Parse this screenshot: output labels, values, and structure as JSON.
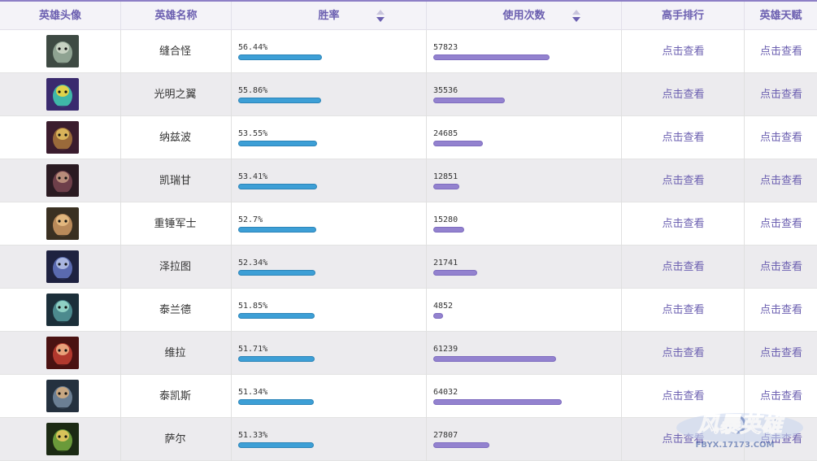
{
  "header": {
    "avatar": "英雄头像",
    "name": "英雄名称",
    "winrate": "胜率",
    "usage": "使用次数",
    "ranking": "高手排行",
    "talents": "英雄天赋"
  },
  "colors": {
    "accent": "#6b5fb0",
    "win_bar": "#3d9fd6",
    "use_bar": "#9382cf",
    "row_alt": "#ecebee"
  },
  "usage_max": 64032,
  "heroes": [
    {
      "name": "缝合怪",
      "winrate": "56.44%",
      "win_value": 56.44,
      "usage": "57823",
      "usage_value": 57823,
      "ranking": "点击查看",
      "talents": "点击查看",
      "portrait": "abomination-portrait"
    },
    {
      "name": "光明之翼",
      "winrate": "55.86%",
      "win_value": 55.86,
      "usage": "35536",
      "usage_value": 35536,
      "ranking": "点击查看",
      "talents": "点击查看",
      "portrait": "dragon-portrait"
    },
    {
      "name": "纳兹波",
      "winrate": "53.55%",
      "win_value": 53.55,
      "usage": "24685",
      "usage_value": 24685,
      "ranking": "点击查看",
      "talents": "点击查看",
      "portrait": "witchdoctor-portrait"
    },
    {
      "name": "凯瑞甘",
      "winrate": "53.41%",
      "win_value": 53.41,
      "usage": "12851",
      "usage_value": 12851,
      "ranking": "点击查看",
      "talents": "点击查看",
      "portrait": "queen-portrait"
    },
    {
      "name": "重锤军士",
      "winrate": "52.7%",
      "win_value": 52.7,
      "usage": "15280",
      "usage_value": 15280,
      "ranking": "点击查看",
      "talents": "点击查看",
      "portrait": "sergeant-portrait"
    },
    {
      "name": "泽拉图",
      "winrate": "52.34%",
      "win_value": 52.34,
      "usage": "21741",
      "usage_value": 21741,
      "ranking": "点击查看",
      "talents": "点击查看",
      "portrait": "templar-portrait"
    },
    {
      "name": "泰兰德",
      "winrate": "51.85%",
      "win_value": 51.85,
      "usage": "4852",
      "usage_value": 4852,
      "ranking": "点击查看",
      "talents": "点击查看",
      "portrait": "priestess-portrait"
    },
    {
      "name": "维拉",
      "winrate": "51.71%",
      "win_value": 51.71,
      "usage": "61239",
      "usage_value": 61239,
      "ranking": "点击查看",
      "talents": "点击查看",
      "portrait": "hunter-portrait"
    },
    {
      "name": "泰凯斯",
      "winrate": "51.34%",
      "win_value": 51.34,
      "usage": "64032",
      "usage_value": 64032,
      "ranking": "点击查看",
      "talents": "点击查看",
      "portrait": "marine-portrait"
    },
    {
      "name": "萨尔",
      "winrate": "51.33%",
      "win_value": 51.33,
      "usage": "27807",
      "usage_value": 27807,
      "ranking": "点击查看",
      "talents": "点击查看",
      "portrait": "orc-portrait"
    }
  ],
  "watermark": {
    "logo_text": "风暴英雄",
    "url_text": "FBYX.17173.COM"
  }
}
